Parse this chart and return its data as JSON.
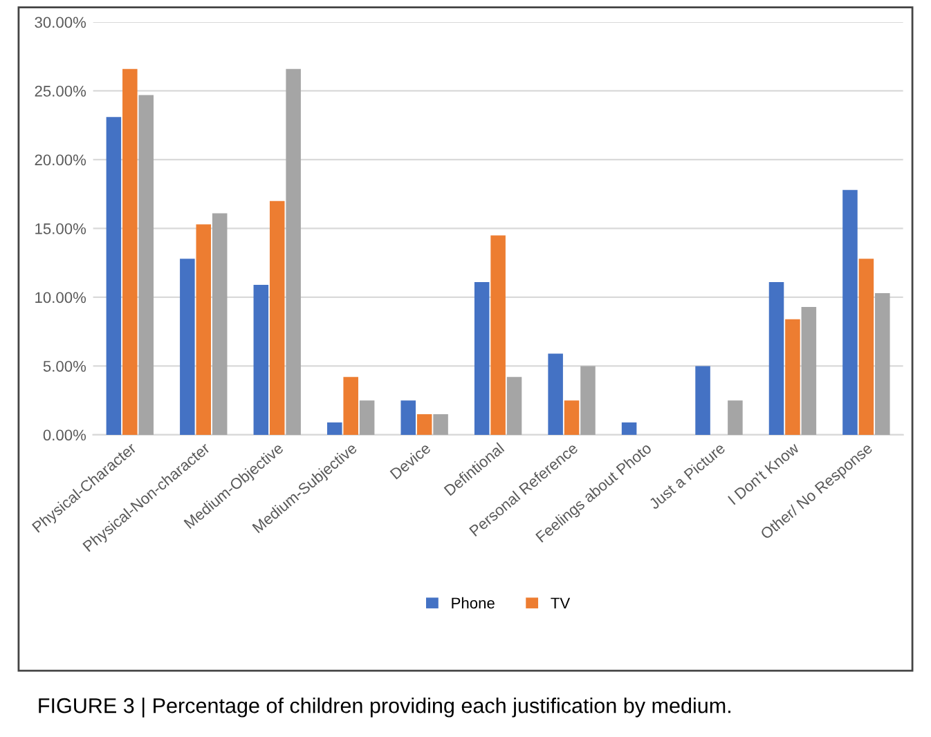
{
  "chart_data": {
    "type": "bar",
    "categories": [
      "Physical-Character",
      "Physical-Non-character",
      "Medium-Objective",
      "Medium-Subjective",
      "Device",
      "Defintional",
      "Personal Reference",
      "Feelings about Photo",
      "Just a Picture",
      "I Don't Know",
      "Other/ No Response"
    ],
    "series": [
      {
        "name": "Phone",
        "color": "#4472c4",
        "values": [
          23.1,
          12.8,
          10.9,
          0.9,
          2.5,
          11.1,
          5.9,
          0.9,
          5.0,
          11.1,
          17.8
        ]
      },
      {
        "name": "TV",
        "color": "#ed7d31",
        "values": [
          26.6,
          15.3,
          17.0,
          4.2,
          1.5,
          14.5,
          2.5,
          0,
          0,
          8.4,
          12.8
        ]
      },
      {
        "color": "#a5a5a5",
        "values": [
          24.7,
          16.1,
          26.6,
          2.5,
          1.5,
          4.2,
          5.0,
          0,
          2.5,
          9.3,
          10.3
        ]
      }
    ],
    "ylim": [
      0,
      30
    ],
    "yticks": [
      {
        "value": 0,
        "label": "0.00%"
      },
      {
        "value": 5,
        "label": "5.00%"
      },
      {
        "value": 10,
        "label": "10.00%"
      },
      {
        "value": 15,
        "label": "15.00%"
      },
      {
        "value": 20,
        "label": "20.00%"
      },
      {
        "value": 25,
        "label": "25.00%"
      },
      {
        "value": 30,
        "label": "30.00%"
      }
    ],
    "grid": "y",
    "legend": "bottom",
    "annotations": [
      "FIGURE 3 | Percentage of children providing each justification by medium."
    ]
  }
}
